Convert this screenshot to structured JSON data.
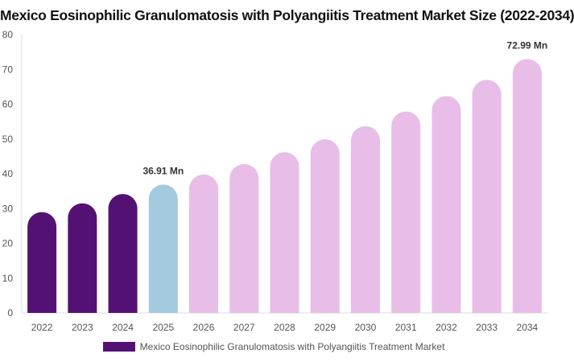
{
  "chart_data": {
    "type": "bar",
    "title": "Mexico Eosinophilic Granulomatosis with Polyangiitis Treatment Market Size (2022-2034)",
    "categories": [
      "2022",
      "2023",
      "2024",
      "2025",
      "2026",
      "2027",
      "2028",
      "2029",
      "2030",
      "2031",
      "2032",
      "2033",
      "2034"
    ],
    "series": [
      {
        "name": "Mexico Eosinophilic Granulomatosis with Polyangiitis Treatment Market",
        "values": [
          29.0,
          31.5,
          34.2,
          36.91,
          39.8,
          42.8,
          46.2,
          49.9,
          53.7,
          57.9,
          62.3,
          67.0,
          72.99
        ]
      }
    ],
    "bar_colors": [
      "#531273",
      "#531273",
      "#531273",
      "#a4cadf",
      "#e8bde8",
      "#e8bde8",
      "#e8bde8",
      "#e8bde8",
      "#e8bde8",
      "#e8bde8",
      "#e8bde8",
      "#e8bde8",
      "#e8bde8"
    ],
    "legend_color": "#531273",
    "annotations": [
      {
        "category": "2025",
        "text": "36.91 Mn"
      },
      {
        "category": "2034",
        "text": "72.99 Mn"
      }
    ],
    "ylim": [
      0,
      80
    ],
    "yticks": [
      "0",
      "10",
      "20",
      "30",
      "40",
      "50",
      "60",
      "70",
      "80"
    ],
    "xlabel": "",
    "ylabel": "",
    "grid": false,
    "legend_position": "bottom"
  }
}
